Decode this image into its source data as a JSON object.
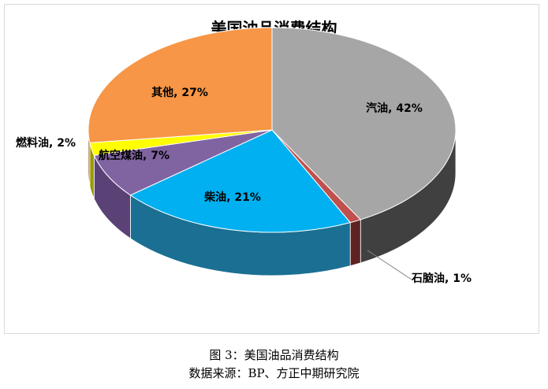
{
  "chart_data": {
    "type": "pie",
    "title": "美国油品消费结构",
    "style": "3d-pie",
    "start": "top, clockwise",
    "categories": [
      "汽油",
      "石脑油",
      "柴油",
      "航空煤油",
      "燃料油",
      "其他"
    ],
    "values": [
      42,
      1,
      21,
      7,
      2,
      27
    ],
    "data_labels": [
      "汽油, 42%",
      "石脑油, 1%",
      "柴油, 21%",
      "航空煤油, 7%",
      "燃料油, 2%",
      "其他, 27%"
    ],
    "colors": [
      "#a6a6a6",
      "#c0504d",
      "#00b0f0",
      "#8064a2",
      "#ffff00",
      "#f79646"
    ],
    "side_colors": [
      "#404040",
      "#5e2321",
      "#1a6f92",
      "#5a4277",
      "#9a9a00",
      "#a65d22"
    ]
  },
  "caption": {
    "figure": "图 3：美国油品消费结构",
    "source": "数据来源：BP、方正中期研究院"
  }
}
